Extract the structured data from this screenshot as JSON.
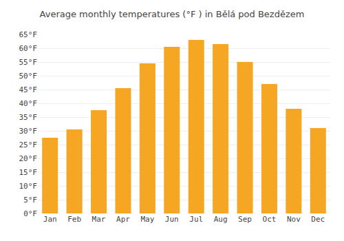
{
  "chart_data": {
    "type": "bar",
    "title": "Average monthly temperatures (°F ) in Bělá pod Bezdězem",
    "categories": [
      "Jan",
      "Feb",
      "Mar",
      "Apr",
      "May",
      "Jun",
      "Jul",
      "Aug",
      "Sep",
      "Oct",
      "Nov",
      "Dec"
    ],
    "values": [
      27.5,
      30.5,
      37.5,
      45.5,
      54.5,
      60.5,
      63.0,
      61.5,
      55.0,
      47.0,
      38.0,
      31.0
    ],
    "color": "#F5A623",
    "ylim": [
      0,
      65
    ],
    "yticks": [
      {
        "value": 0,
        "label": "0°F"
      },
      {
        "value": 5,
        "label": "5°F"
      },
      {
        "value": 10,
        "label": "10°F"
      },
      {
        "value": 15,
        "label": "15°F"
      },
      {
        "value": 20,
        "label": "20°F"
      },
      {
        "value": 25,
        "label": "25°F"
      },
      {
        "value": 30,
        "label": "30°F"
      },
      {
        "value": 35,
        "label": "35°F"
      },
      {
        "value": 40,
        "label": "40°F"
      },
      {
        "value": 45,
        "label": "45°F"
      },
      {
        "value": 50,
        "label": "50°F"
      },
      {
        "value": 55,
        "label": "55°F"
      },
      {
        "value": 60,
        "label": "60°F"
      },
      {
        "value": 65,
        "label": "65°F"
      }
    ],
    "grid": true
  }
}
